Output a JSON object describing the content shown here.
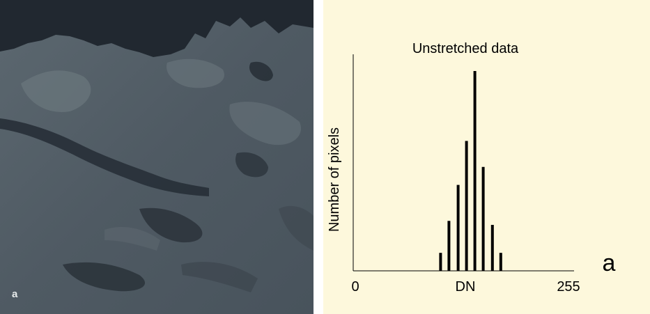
{
  "photo": {
    "panel_label": "a",
    "description_icon": "satellite-image"
  },
  "colors": {
    "chart_background": "#fdf8dc",
    "bars": "#000000",
    "photo_base": "#56606a"
  },
  "chart_data": {
    "type": "bar",
    "title": "Unstretched data",
    "xlabel": "DN",
    "ylabel": "Number of pixels",
    "panel_label": "a",
    "xlim": [
      0,
      255
    ],
    "x_tick_labels": [
      "0",
      "255"
    ],
    "x": [
      102,
      112,
      123,
      133,
      143,
      153,
      164,
      174
    ],
    "values": [
      9,
      25,
      43,
      65,
      100,
      52,
      23,
      9
    ],
    "grid": false,
    "legend": "none"
  }
}
